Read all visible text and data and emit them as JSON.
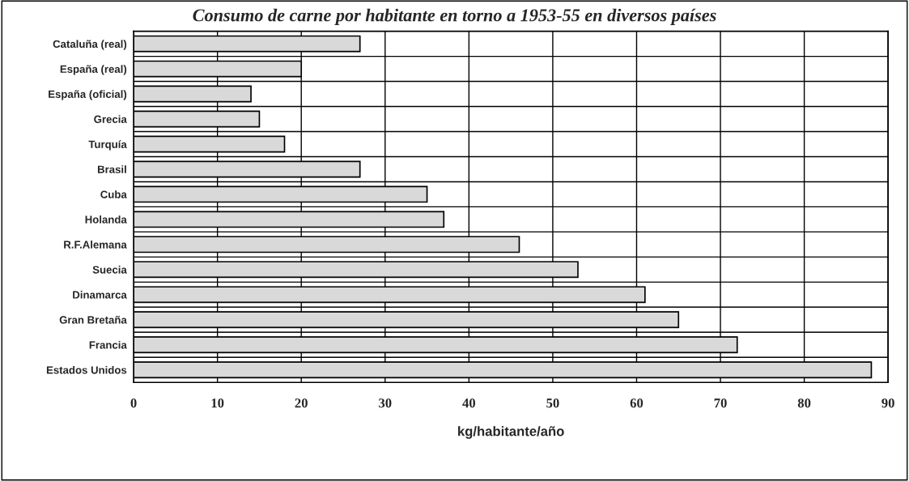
{
  "chart_data": {
    "type": "bar",
    "orientation": "horizontal",
    "title": "Consumo de carne por habitante en torno a 1953-55 en diversos países",
    "xlabel": "kg/habitante/año",
    "categories": [
      "Cataluña (real)",
      "España (real)",
      "España (oficial)",
      "Grecia",
      "Turquía",
      "Brasil",
      "Cuba",
      "Holanda",
      "R.F.Alemana",
      "Suecia",
      "Dinamarca",
      "Gran Bretaña",
      "Francia",
      "Estados Unidos"
    ],
    "values": [
      27,
      20,
      14,
      15,
      18,
      27,
      35,
      37,
      46,
      53,
      61,
      65,
      72,
      88
    ],
    "color": "#d9d9d9",
    "xlim": [
      0,
      90
    ],
    "xticks": [
      0,
      10,
      20,
      30,
      40,
      50,
      60,
      70,
      80,
      90
    ],
    "grid": true
  }
}
